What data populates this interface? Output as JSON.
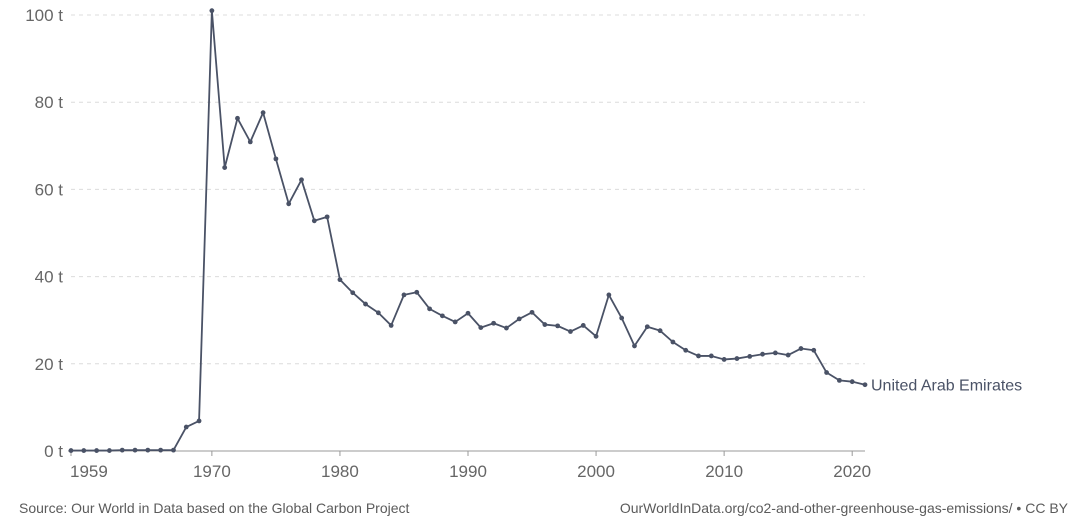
{
  "chart_data": {
    "type": "line",
    "title": "",
    "xlabel": "",
    "ylabel": "",
    "xlim": [
      1959,
      2021
    ],
    "ylim": [
      0,
      100
    ],
    "x_ticks": [
      1959,
      1970,
      1980,
      1990,
      2000,
      2010,
      2020
    ],
    "y_ticks": [
      0,
      20,
      40,
      60,
      80,
      100
    ],
    "y_unit": " t",
    "grid": "horizontal-dashed",
    "line_color": "#4a5266",
    "series": [
      {
        "name": "United Arab Emirates",
        "x": [
          1959,
          1960,
          1961,
          1962,
          1963,
          1964,
          1965,
          1966,
          1967,
          1968,
          1969,
          1970,
          1971,
          1972,
          1973,
          1974,
          1975,
          1976,
          1977,
          1978,
          1979,
          1980,
          1981,
          1982,
          1983,
          1984,
          1985,
          1986,
          1987,
          1988,
          1989,
          1990,
          1991,
          1992,
          1993,
          1994,
          1995,
          1996,
          1997,
          1998,
          1999,
          2000,
          2001,
          2002,
          2003,
          2004,
          2005,
          2006,
          2007,
          2008,
          2009,
          2010,
          2011,
          2012,
          2013,
          2014,
          2015,
          2016,
          2017,
          2018,
          2019,
          2020,
          2021
        ],
        "values": [
          0.1,
          0.1,
          0.1,
          0.1,
          0.2,
          0.2,
          0.2,
          0.2,
          0.2,
          5.5,
          6.9,
          101,
          65,
          76.3,
          70.9,
          77.6,
          67,
          56.7,
          62.2,
          52.8,
          53.7,
          39.3,
          36.3,
          33.7,
          31.7,
          28.8,
          35.8,
          36.4,
          32.6,
          31,
          29.6,
          31.6,
          28.3,
          29.3,
          28.2,
          30.3,
          31.8,
          29,
          28.7,
          27.4,
          28.8,
          26.3,
          35.8,
          30.5,
          24.1,
          28.5,
          27.6,
          25,
          23.1,
          21.8,
          21.8,
          21,
          21.2,
          21.7,
          22.2,
          22.5,
          22,
          23.5,
          23.1,
          18,
          16.2,
          15.9,
          15.2
        ]
      }
    ]
  },
  "footer": {
    "source": "Source: Our World in Data based on the Global Carbon Project",
    "url_license": "OurWorldInData.org/co2-and-other-greenhouse-gas-emissions/ • CC BY"
  }
}
